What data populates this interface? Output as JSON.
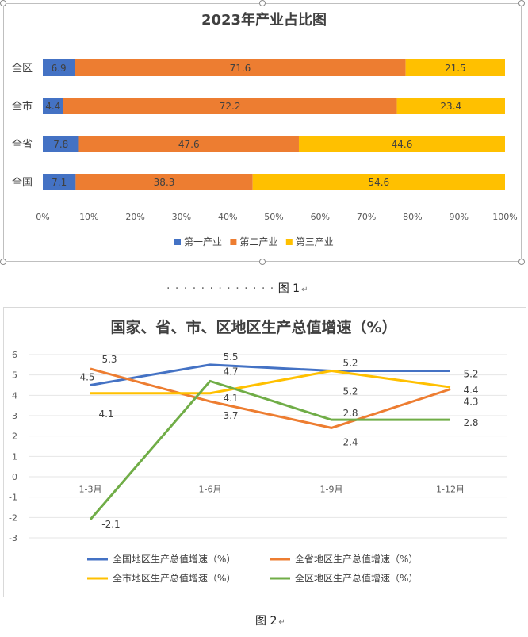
{
  "figure1": {
    "caption_dots": "· · · · · · · · · · · · ·",
    "caption_label": "图 1",
    "caption_mark": "↵",
    "chart_data": {
      "type": "stacked-bar-100",
      "title": "2023年产业占比图",
      "categories": [
        "全区",
        "全市",
        "全省",
        "全国"
      ],
      "series": [
        {
          "name": "第一产业",
          "color": "#4472C4",
          "values": [
            6.9,
            4.4,
            7.8,
            7.1
          ]
        },
        {
          "name": "第二产业",
          "color": "#ED7D31",
          "values": [
            71.6,
            72.2,
            47.6,
            38.3
          ]
        },
        {
          "name": "第三产业",
          "color": "#FFC000",
          "values": [
            21.5,
            23.4,
            44.6,
            54.6
          ]
        }
      ],
      "xticks": [
        "0%",
        "10%",
        "20%",
        "30%",
        "40%",
        "50%",
        "60%",
        "70%",
        "80%",
        "90%",
        "100%"
      ],
      "xlim": [
        0,
        100
      ],
      "legend_position": "bottom"
    }
  },
  "figure2": {
    "caption_label": "图 2",
    "caption_mark": "↵",
    "chart_data": {
      "type": "line",
      "title": "国家、省、市、区地区生产总值增速（%）",
      "categories": [
        "1-3月",
        "1-6月",
        "1-9月",
        "1-12月"
      ],
      "ylim": [
        -3,
        6
      ],
      "yticks": [
        "6",
        "5",
        "4",
        "3",
        "2",
        "1",
        "0",
        "-1",
        "-2",
        "-3"
      ],
      "series": [
        {
          "name": "全国地区生产总值增速（%）",
          "color": "#4472C4",
          "values": [
            4.5,
            5.5,
            5.2,
            5.2
          ]
        },
        {
          "name": "全省地区生产总值增速（%）",
          "color": "#ED7D31",
          "values": [
            5.3,
            3.7,
            2.4,
            4.3
          ]
        },
        {
          "name": "全市地区生产总值增速（%）",
          "color": "#FFC000",
          "values": [
            4.1,
            4.1,
            5.2,
            4.4
          ]
        },
        {
          "name": "全区地区生产总值增速（%）",
          "color": "#70AD47",
          "values": [
            -2.1,
            4.7,
            2.8,
            2.8
          ]
        }
      ],
      "legend_position": "bottom"
    }
  }
}
